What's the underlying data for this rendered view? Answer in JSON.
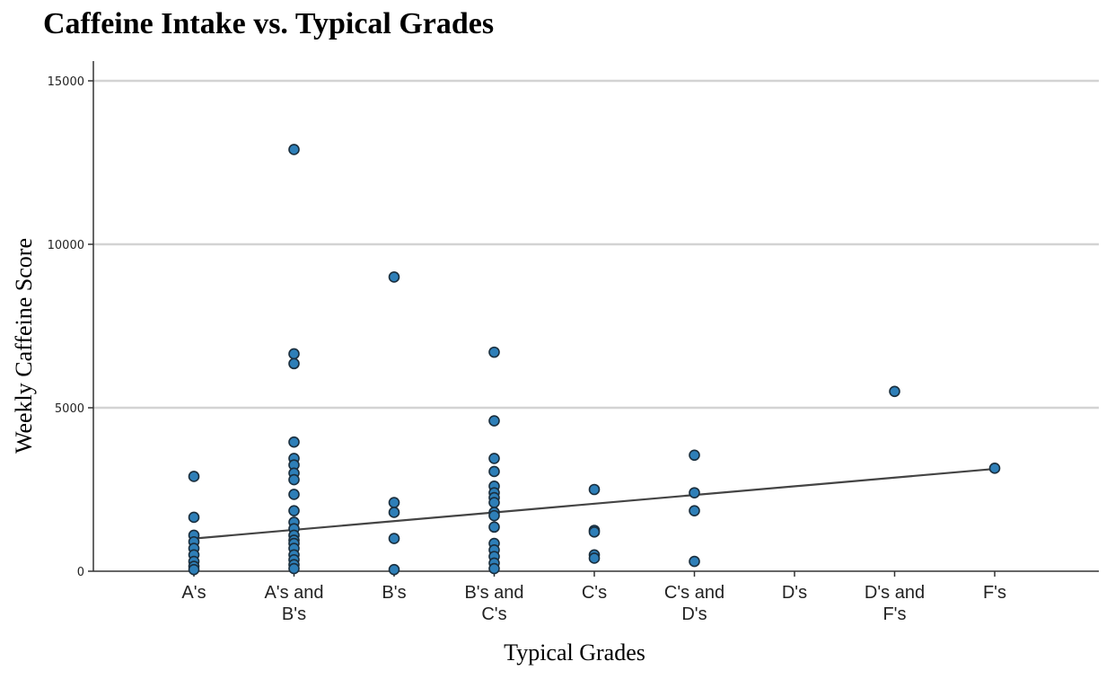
{
  "chart_data": {
    "type": "scatter",
    "title": "Caffeine Intake vs. Typical Grades",
    "xlabel": "Typical Grades",
    "ylabel": "Weekly Caffeine Score",
    "categories": [
      [
        "A's"
      ],
      [
        "A's and",
        "B's"
      ],
      [
        "B's"
      ],
      [
        "B's and",
        "C's"
      ],
      [
        "C's"
      ],
      [
        "C's and",
        "D's"
      ],
      [
        "D's"
      ],
      [
        "D's and",
        "F's"
      ],
      [
        "F's"
      ]
    ],
    "ylim": [
      0,
      15000
    ],
    "yticks": [
      "0",
      "5000",
      "10000",
      "15000"
    ],
    "ytick_values": [
      0,
      5000,
      10000,
      15000
    ],
    "grid": "horizontal",
    "points": [
      {
        "x": 0,
        "y": 2900
      },
      {
        "x": 0,
        "y": 1650
      },
      {
        "x": 0,
        "y": 1100
      },
      {
        "x": 0,
        "y": 900
      },
      {
        "x": 0,
        "y": 700
      },
      {
        "x": 0,
        "y": 500
      },
      {
        "x": 0,
        "y": 300
      },
      {
        "x": 0,
        "y": 150
      },
      {
        "x": 0,
        "y": 50
      },
      {
        "x": 1,
        "y": 12900
      },
      {
        "x": 1,
        "y": 6650
      },
      {
        "x": 1,
        "y": 6350
      },
      {
        "x": 1,
        "y": 3950
      },
      {
        "x": 1,
        "y": 3450
      },
      {
        "x": 1,
        "y": 3250
      },
      {
        "x": 1,
        "y": 3000
      },
      {
        "x": 1,
        "y": 2800
      },
      {
        "x": 1,
        "y": 2350
      },
      {
        "x": 1,
        "y": 1850
      },
      {
        "x": 1,
        "y": 1500
      },
      {
        "x": 1,
        "y": 1300
      },
      {
        "x": 1,
        "y": 1100
      },
      {
        "x": 1,
        "y": 950
      },
      {
        "x": 1,
        "y": 850
      },
      {
        "x": 1,
        "y": 700
      },
      {
        "x": 1,
        "y": 500
      },
      {
        "x": 1,
        "y": 350
      },
      {
        "x": 1,
        "y": 200
      },
      {
        "x": 1,
        "y": 80
      },
      {
        "x": 2,
        "y": 9000
      },
      {
        "x": 2,
        "y": 2100
      },
      {
        "x": 2,
        "y": 1800
      },
      {
        "x": 2,
        "y": 1000
      },
      {
        "x": 2,
        "y": 50
      },
      {
        "x": 3,
        "y": 6700
      },
      {
        "x": 3,
        "y": 4600
      },
      {
        "x": 3,
        "y": 3450
      },
      {
        "x": 3,
        "y": 3050
      },
      {
        "x": 3,
        "y": 2600
      },
      {
        "x": 3,
        "y": 2400
      },
      {
        "x": 3,
        "y": 2250
      },
      {
        "x": 3,
        "y": 2100
      },
      {
        "x": 3,
        "y": 1800
      },
      {
        "x": 3,
        "y": 1700
      },
      {
        "x": 3,
        "y": 1350
      },
      {
        "x": 3,
        "y": 850
      },
      {
        "x": 3,
        "y": 650
      },
      {
        "x": 3,
        "y": 450
      },
      {
        "x": 3,
        "y": 250
      },
      {
        "x": 3,
        "y": 80
      },
      {
        "x": 4,
        "y": 2500
      },
      {
        "x": 4,
        "y": 1250
      },
      {
        "x": 4,
        "y": 1200
      },
      {
        "x": 4,
        "y": 500
      },
      {
        "x": 4,
        "y": 400
      },
      {
        "x": 5,
        "y": 3550
      },
      {
        "x": 5,
        "y": 2400
      },
      {
        "x": 5,
        "y": 1850
      },
      {
        "x": 5,
        "y": 300
      },
      {
        "x": 7,
        "y": 5500
      },
      {
        "x": 8,
        "y": 3150
      }
    ],
    "trendline": {
      "x": [
        0,
        8
      ],
      "y": [
        1000,
        3130
      ]
    },
    "colors": {
      "point_fill": "#2e7fb8",
      "point_stroke": "#1a2e3d",
      "trendline": "#444444",
      "grid": "#d3d3d3",
      "axis": "#333333"
    }
  }
}
